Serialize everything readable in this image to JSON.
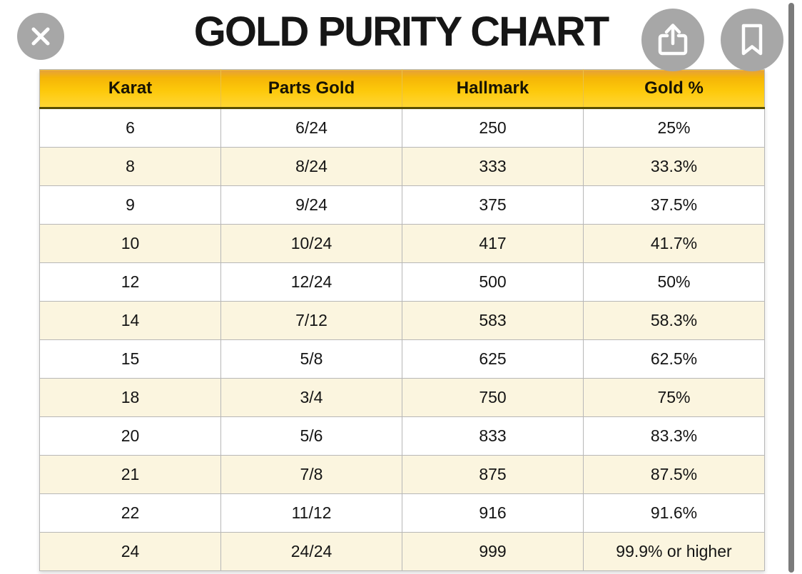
{
  "page_title": "GOLD PURITY CHART",
  "viewer": {
    "close_icon": "close-x",
    "share_icon": "share-up-arrow",
    "bookmark_icon": "bookmark-ribbon",
    "scrollbar": "vertical-scrollbar"
  },
  "chart_data": {
    "type": "table",
    "title": "GOLD PURITY CHART",
    "columns": [
      "Karat",
      "Parts Gold",
      "Hallmark",
      "Gold %"
    ],
    "rows": [
      [
        "6",
        "6/24",
        "250",
        "25%"
      ],
      [
        "8",
        "8/24",
        "333",
        "33.3%"
      ],
      [
        "9",
        "9/24",
        "375",
        "37.5%"
      ],
      [
        "10",
        "10/24",
        "417",
        "41.7%"
      ],
      [
        "12",
        "12/24",
        "500",
        "50%"
      ],
      [
        "14",
        "7/12",
        "583",
        "58.3%"
      ],
      [
        "15",
        "5/8",
        "625",
        "62.5%"
      ],
      [
        "18",
        "3/4",
        "750",
        "75%"
      ],
      [
        "20",
        "5/6",
        "833",
        "83.3%"
      ],
      [
        "21",
        "7/8",
        "875",
        "87.5%"
      ],
      [
        "22",
        "11/12",
        "916",
        "91.6%"
      ],
      [
        "24",
        "24/24",
        "999",
        "99.9% or higher"
      ]
    ],
    "layout": {
      "stripe_pattern": "alternating white and cream, starting white",
      "header_style": "gold gradient with dark underline"
    }
  },
  "colors": {
    "header_gradient_top": "#e5a13c",
    "header_gradient_bottom": "#ffd735",
    "header_underline": "#584e00",
    "row_alt": "#fbf5df",
    "row_default": "#ffffff",
    "grid_border": "#b7b7b7",
    "button_circle": "#a7a7a7",
    "scrollbar": "#7b7b7b",
    "title_text": "#161616"
  }
}
